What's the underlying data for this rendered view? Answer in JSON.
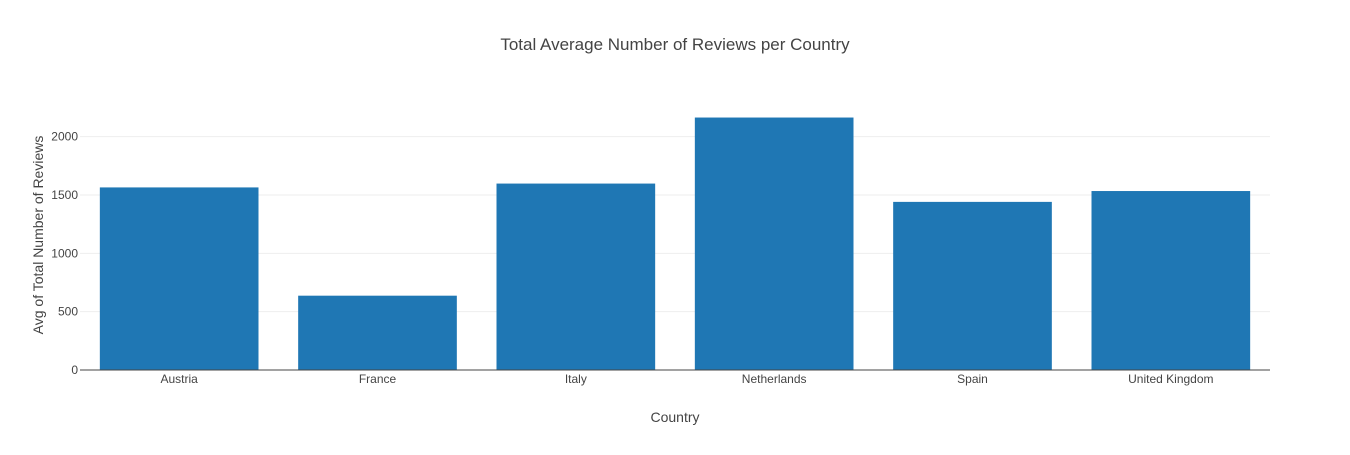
{
  "chart_data": {
    "type": "bar",
    "title": "Total Average Number of Reviews per Country",
    "xlabel": "Country",
    "ylabel": "Avg of Total Number of Reviews",
    "categories": [
      "Austria",
      "France",
      "Italy",
      "Netherlands",
      "Spain",
      "United Kingdom"
    ],
    "values": [
      1565,
      637,
      1598,
      2164,
      1441,
      1534
    ],
    "ylim": [
      0,
      2280
    ],
    "yticks": [
      0,
      500,
      1000,
      1500,
      2000
    ],
    "grid": true,
    "bar_color": "#1f77b4"
  }
}
